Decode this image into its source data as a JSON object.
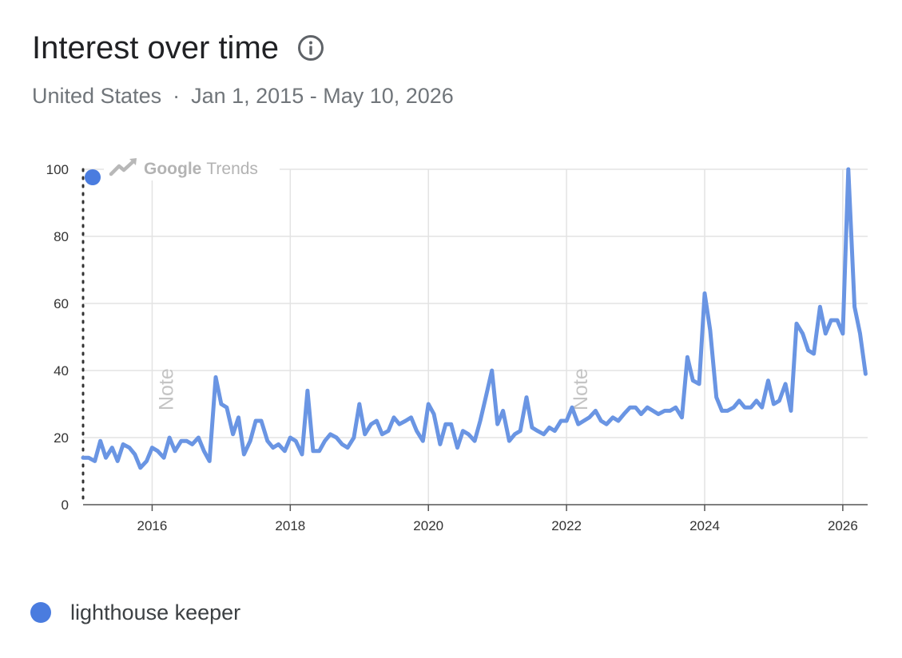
{
  "header": {
    "title": "Interest over time",
    "info_icon": "info-circle-icon"
  },
  "subtitle": {
    "region": "United States",
    "separator": "·",
    "date_range": "Jan 1, 2015 - May 10, 2026"
  },
  "watermark": {
    "google": "Google",
    "trends": "Trends",
    "icon": "trending-up-icon"
  },
  "notes": [
    "Note",
    "Note"
  ],
  "legend": {
    "label": "lighthouse keeper",
    "color": "#4a7cdf"
  },
  "chart_data": {
    "type": "line",
    "x_unit": "year (decimal)",
    "xlim": [
      2015.0,
      2026.36
    ],
    "ylim": [
      0,
      100
    ],
    "x_ticks": [
      2016,
      2018,
      2020,
      2022,
      2024,
      2026
    ],
    "y_ticks": [
      0,
      20,
      40,
      60,
      80,
      100
    ],
    "grid": true,
    "note_markers": [
      2016.0,
      2022.0
    ],
    "series": [
      {
        "name": "lighthouse keeper",
        "color": "#6a95e3",
        "points": [
          [
            2015.0,
            14
          ],
          [
            2015.08,
            14
          ],
          [
            2015.17,
            13
          ],
          [
            2015.25,
            19
          ],
          [
            2015.33,
            14
          ],
          [
            2015.42,
            17
          ],
          [
            2015.5,
            13
          ],
          [
            2015.58,
            18
          ],
          [
            2015.67,
            17
          ],
          [
            2015.75,
            15
          ],
          [
            2015.83,
            11
          ],
          [
            2015.92,
            13
          ],
          [
            2016.0,
            17
          ],
          [
            2016.08,
            16
          ],
          [
            2016.17,
            14
          ],
          [
            2016.25,
            20
          ],
          [
            2016.33,
            16
          ],
          [
            2016.42,
            19
          ],
          [
            2016.5,
            19
          ],
          [
            2016.58,
            18
          ],
          [
            2016.67,
            20
          ],
          [
            2016.75,
            16
          ],
          [
            2016.83,
            13
          ],
          [
            2016.92,
            38
          ],
          [
            2017.0,
            30
          ],
          [
            2017.08,
            29
          ],
          [
            2017.17,
            21
          ],
          [
            2017.25,
            26
          ],
          [
            2017.33,
            15
          ],
          [
            2017.42,
            19
          ],
          [
            2017.5,
            25
          ],
          [
            2017.58,
            25
          ],
          [
            2017.67,
            19
          ],
          [
            2017.75,
            17
          ],
          [
            2017.83,
            18
          ],
          [
            2017.92,
            16
          ],
          [
            2018.0,
            20
          ],
          [
            2018.08,
            19
          ],
          [
            2018.17,
            15
          ],
          [
            2018.25,
            34
          ],
          [
            2018.33,
            16
          ],
          [
            2018.42,
            16
          ],
          [
            2018.5,
            19
          ],
          [
            2018.58,
            21
          ],
          [
            2018.67,
            20
          ],
          [
            2018.75,
            18
          ],
          [
            2018.83,
            17
          ],
          [
            2018.92,
            20
          ],
          [
            2019.0,
            30
          ],
          [
            2019.08,
            21
          ],
          [
            2019.17,
            24
          ],
          [
            2019.25,
            25
          ],
          [
            2019.33,
            21
          ],
          [
            2019.42,
            22
          ],
          [
            2019.5,
            26
          ],
          [
            2019.58,
            24
          ],
          [
            2019.67,
            25
          ],
          [
            2019.75,
            26
          ],
          [
            2019.83,
            22
          ],
          [
            2019.92,
            19
          ],
          [
            2020.0,
            30
          ],
          [
            2020.08,
            27
          ],
          [
            2020.17,
            18
          ],
          [
            2020.25,
            24
          ],
          [
            2020.33,
            24
          ],
          [
            2020.42,
            17
          ],
          [
            2020.5,
            22
          ],
          [
            2020.58,
            21
          ],
          [
            2020.67,
            19
          ],
          [
            2020.75,
            25
          ],
          [
            2020.83,
            32
          ],
          [
            2020.92,
            40
          ],
          [
            2021.0,
            24
          ],
          [
            2021.08,
            28
          ],
          [
            2021.17,
            19
          ],
          [
            2021.25,
            21
          ],
          [
            2021.33,
            22
          ],
          [
            2021.42,
            32
          ],
          [
            2021.5,
            23
          ],
          [
            2021.58,
            22
          ],
          [
            2021.67,
            21
          ],
          [
            2021.75,
            23
          ],
          [
            2021.83,
            22
          ],
          [
            2021.92,
            25
          ],
          [
            2022.0,
            25
          ],
          [
            2022.08,
            29
          ],
          [
            2022.17,
            24
          ],
          [
            2022.25,
            25
          ],
          [
            2022.33,
            26
          ],
          [
            2022.42,
            28
          ],
          [
            2022.5,
            25
          ],
          [
            2022.58,
            24
          ],
          [
            2022.67,
            26
          ],
          [
            2022.75,
            25
          ],
          [
            2022.83,
            27
          ],
          [
            2022.92,
            29
          ],
          [
            2023.0,
            29
          ],
          [
            2023.08,
            27
          ],
          [
            2023.17,
            29
          ],
          [
            2023.25,
            28
          ],
          [
            2023.33,
            27
          ],
          [
            2023.42,
            28
          ],
          [
            2023.5,
            28
          ],
          [
            2023.58,
            29
          ],
          [
            2023.67,
            26
          ],
          [
            2023.75,
            44
          ],
          [
            2023.83,
            37
          ],
          [
            2023.92,
            36
          ],
          [
            2024.0,
            63
          ],
          [
            2024.08,
            52
          ],
          [
            2024.17,
            32
          ],
          [
            2024.25,
            28
          ],
          [
            2024.33,
            28
          ],
          [
            2024.42,
            29
          ],
          [
            2024.5,
            31
          ],
          [
            2024.58,
            29
          ],
          [
            2024.67,
            29
          ],
          [
            2024.75,
            31
          ],
          [
            2024.83,
            29
          ],
          [
            2024.92,
            37
          ],
          [
            2025.0,
            30
          ],
          [
            2025.08,
            31
          ],
          [
            2025.17,
            36
          ],
          [
            2025.25,
            28
          ],
          [
            2025.33,
            54
          ],
          [
            2025.42,
            51
          ],
          [
            2025.5,
            46
          ],
          [
            2025.58,
            45
          ],
          [
            2025.67,
            59
          ],
          [
            2025.75,
            51
          ],
          [
            2025.83,
            55
          ],
          [
            2025.92,
            55
          ],
          [
            2026.0,
            51
          ],
          [
            2026.08,
            100
          ],
          [
            2026.17,
            59
          ],
          [
            2026.25,
            51
          ],
          [
            2026.33,
            39
          ]
        ]
      }
    ]
  }
}
